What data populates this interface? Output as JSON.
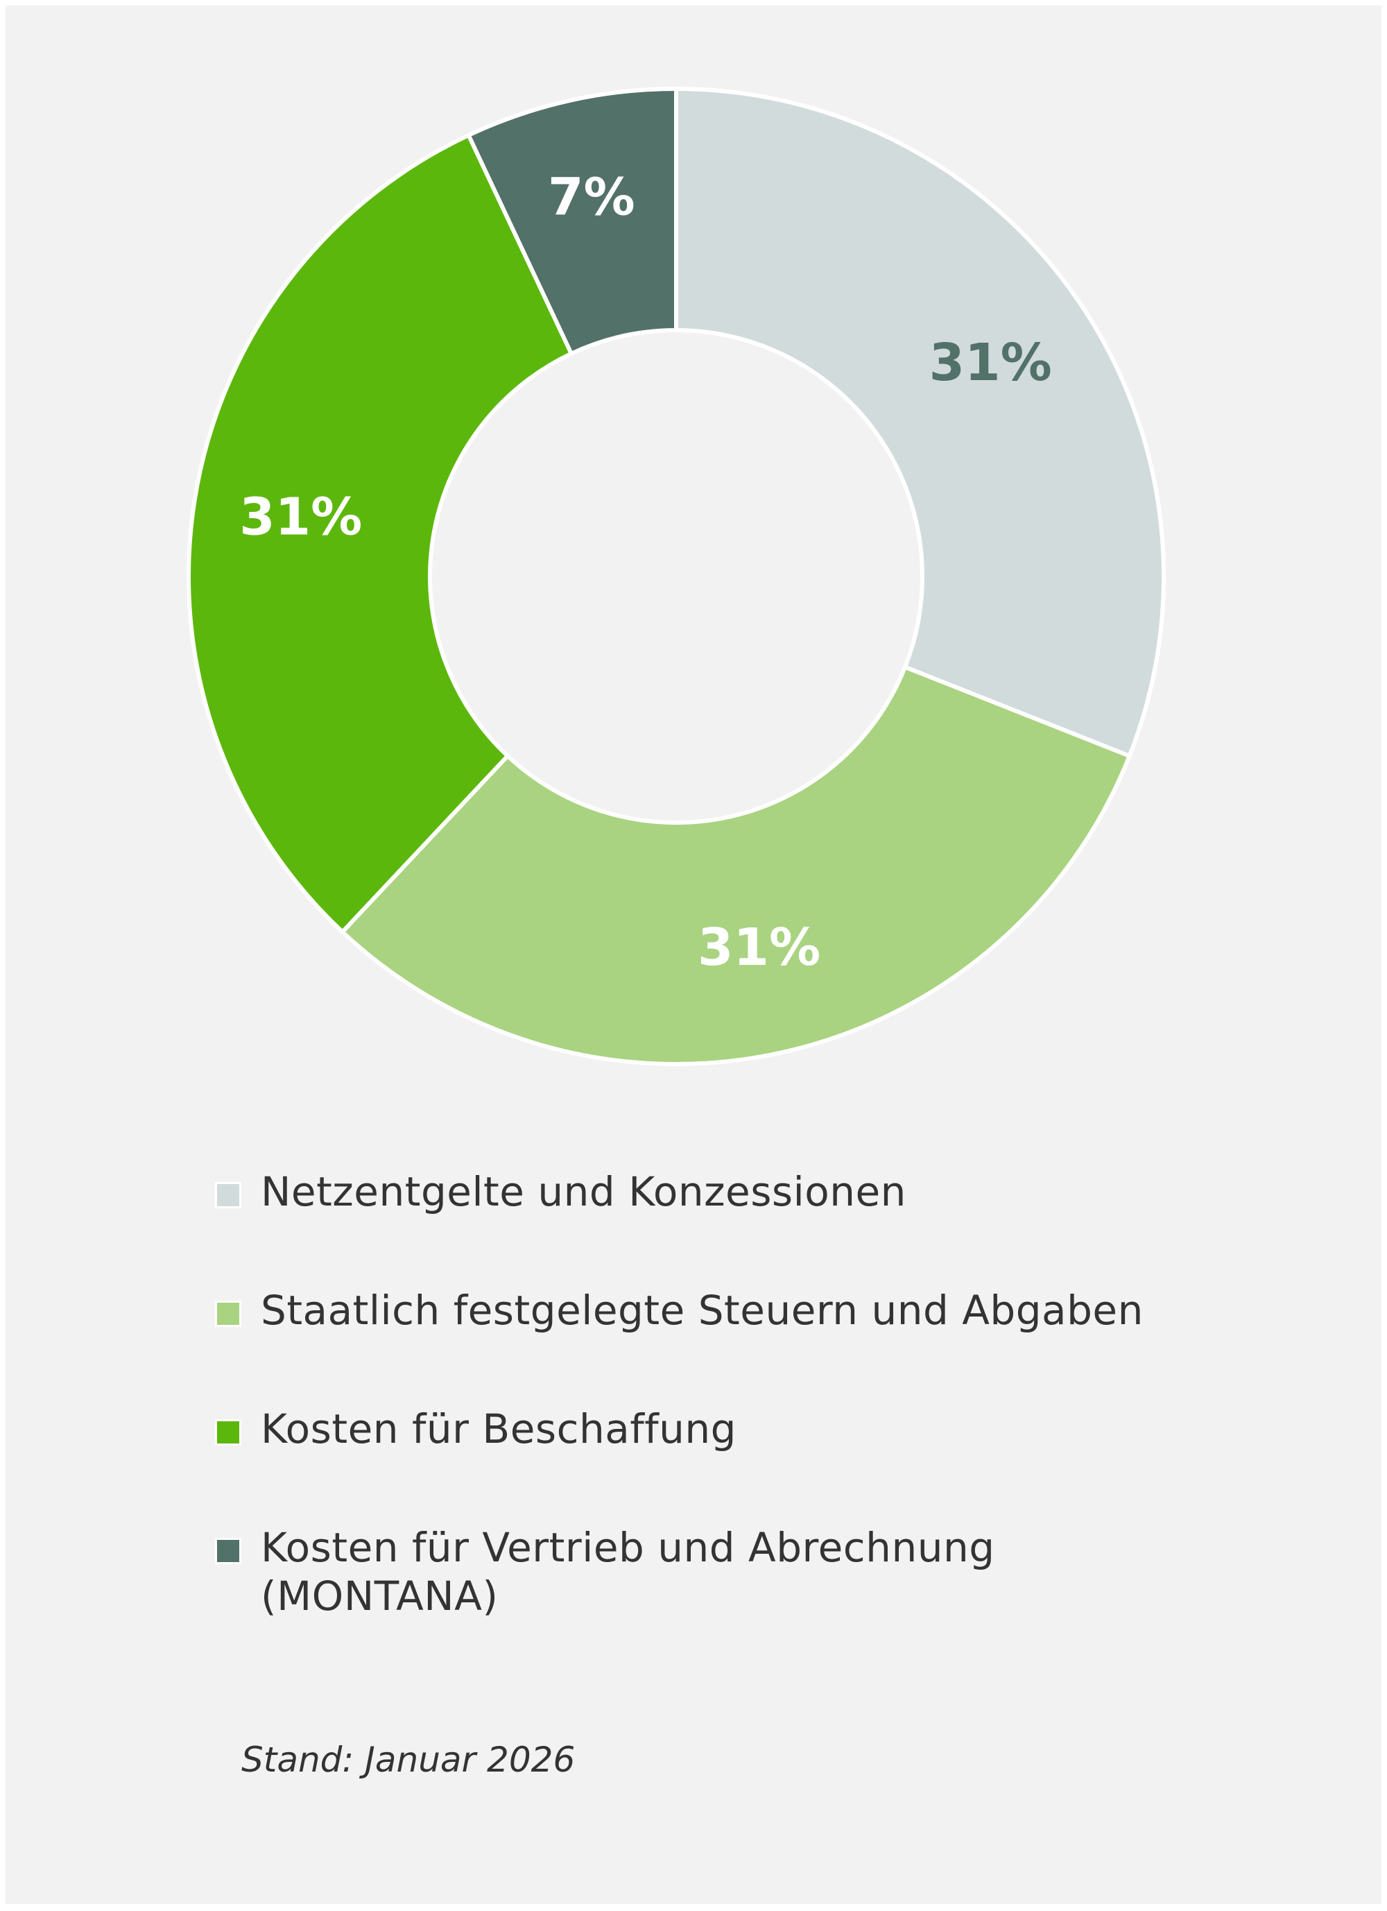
{
  "chart_data": {
    "type": "pie",
    "variant": "donut",
    "title": "",
    "categories": [
      "Netzentgelte und Konzessionen",
      "Staatlich festgelegte Steuern und Abgaben",
      "Kosten für Beschaffung",
      "Kosten für Vertrieb und Abrechnung (MONTANA)"
    ],
    "values": [
      31,
      31,
      31,
      7
    ],
    "value_labels": [
      "31%",
      "31%",
      "31%",
      "7%"
    ],
    "colors": [
      "#d1dbdc",
      "#a9d380",
      "#5cb70c",
      "#527168"
    ],
    "label_colors": [
      "#527168",
      "#ffffff",
      "#ffffff",
      "#ffffff"
    ],
    "legend_position": "bottom",
    "start": "12 o'clock, clockwise"
  },
  "legend": {
    "items": [
      {
        "label": "Netzentgelte und Konzessionen",
        "color": "#d1dbdc"
      },
      {
        "label": "Staatlich festgelegte Steuern und Abgaben",
        "color": "#a9d380"
      },
      {
        "label": "Kosten für Beschaffung",
        "color": "#5cb70c"
      },
      {
        "label": "Kosten für Vertrieb und Abrechnung (MONTANA)",
        "color": "#527168"
      }
    ]
  },
  "footnote": "Stand: Januar 2026"
}
